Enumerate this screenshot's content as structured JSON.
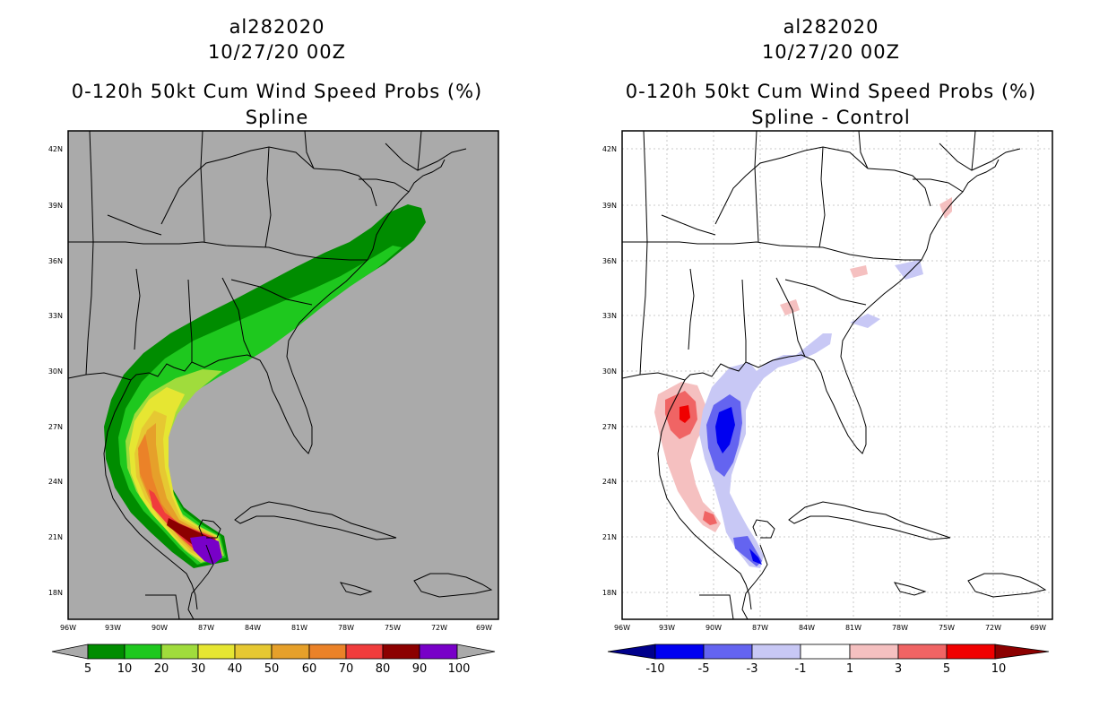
{
  "left": {
    "storm_id": "al282020",
    "init_time": "10/27/20 00Z",
    "product": "0-120h 50kt Cum Wind Speed Probs (%)",
    "subtitle": "Spline",
    "lat_labels": [
      "42N",
      "39N",
      "36N",
      "33N",
      "30N",
      "27N",
      "24N",
      "21N",
      "18N"
    ],
    "lon_labels": [
      "96W",
      "93W",
      "90W",
      "87W",
      "84W",
      "81W",
      "78W",
      "75W",
      "72W",
      "69W"
    ],
    "colorbar_labels": [
      "5",
      "10",
      "20",
      "30",
      "40",
      "50",
      "60",
      "70",
      "80",
      "90",
      "100"
    ],
    "colors": {
      "background": "#aaaaaa",
      "c5": "#008c00",
      "c10": "#1ec81e",
      "c20": "#a0dc3c",
      "c30": "#e6e632",
      "c40": "#e6c832",
      "c50": "#e6a02a",
      "c60": "#eb8228",
      "c70": "#f03c3c",
      "c80": "#8c0000",
      "c90": "#7800c8"
    }
  },
  "right": {
    "storm_id": "al282020",
    "init_time": "10/27/20 00Z",
    "product": "0-120h 50kt Cum Wind Speed Probs (%)",
    "subtitle": "Spline - Control",
    "lat_labels": [
      "42N",
      "39N",
      "36N",
      "33N",
      "30N",
      "27N",
      "24N",
      "21N",
      "18N"
    ],
    "lon_labels": [
      "96W",
      "93W",
      "90W",
      "87W",
      "84W",
      "81W",
      "78W",
      "75W",
      "72W",
      "69W"
    ],
    "colorbar_labels": [
      "-10",
      "-5",
      "-3",
      "-1",
      "1",
      "3",
      "5",
      "10"
    ],
    "colors": {
      "neg10": "#00008c",
      "neg5": "#0000f0",
      "neg3": "#6464f0",
      "neg1": "#c8c8f5",
      "zero": "#ffffff",
      "pos1": "#f5c0c0",
      "pos3": "#f06464",
      "pos5": "#f00000",
      "pos10": "#8c0000"
    }
  }
}
